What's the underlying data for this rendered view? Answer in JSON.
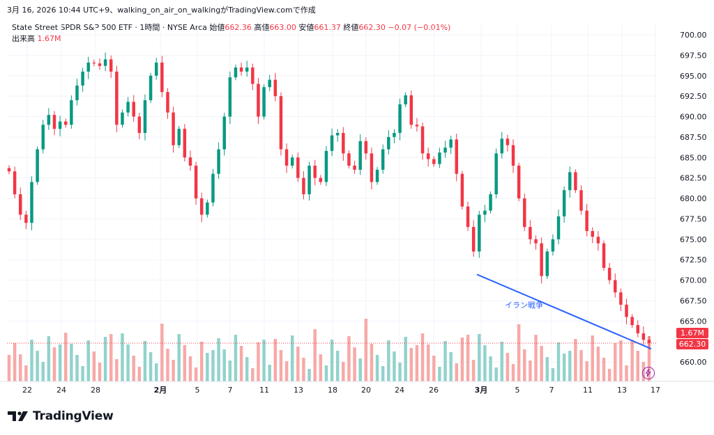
{
  "caption": "3月 16, 2026 10:44 UTC+9、walking_on_air_on_walkingがTradingView.comで作成",
  "header": {
    "symbol": "State Street SPDR S&P 500 ETF · 1時間 · NYSE Arca",
    "open_label": "始値",
    "open": "662.36",
    "high_label": "高値",
    "high": "663.00",
    "low_label": "安値",
    "low": "661.37",
    "close_label": "終値",
    "close": "662.30",
    "change": "−0.07 (−0.01%)"
  },
  "volume": {
    "label": "出来高",
    "value": "1.67M"
  },
  "logo_text": "TradingView",
  "colors": {
    "up": "#089981",
    "down": "#f23645",
    "up_vol": "#92d2cc",
    "down_vol": "#f7a9a7",
    "trend": "#2962ff",
    "grid": "#f0f3fa"
  },
  "chart_data": {
    "type": "candlestick",
    "price_axis": {
      "ticks": [
        "700.00",
        "697.50",
        "695.00",
        "692.50",
        "690.00",
        "687.50",
        "685.00",
        "682.50",
        "680.00",
        "677.50",
        "675.00",
        "672.50",
        "670.00",
        "667.50",
        "665.00",
        "660.00"
      ],
      "ylim": [
        659,
        701
      ]
    },
    "time_axis": {
      "ticks": [
        "22",
        "24",
        "28",
        "2月",
        "5",
        "7",
        "11",
        "13",
        "18",
        "20",
        "24",
        "26",
        "3月",
        "5",
        "7",
        "11",
        "13",
        "17"
      ]
    },
    "last_price": "662.30",
    "last_volume": "1.67M",
    "trendline": {
      "label": "イラン戦争",
      "start": 670.7,
      "end": 661.6
    },
    "close_series": [
      683.3,
      680.5,
      678.0,
      677.0,
      682.0,
      686.0,
      689.0,
      690.2,
      688.5,
      689.4,
      689.0,
      692.0,
      693.8,
      695.5,
      696.6,
      696.5,
      696.2,
      697.0,
      695.5,
      689.0,
      690.5,
      691.8,
      690.0,
      688.0,
      692.0,
      695.0,
      696.6,
      693.0,
      690.5,
      686.5,
      688.5,
      685.0,
      684.0,
      680.0,
      678.0,
      679.5,
      683.0,
      686.0,
      690.0,
      694.8,
      696.0,
      695.5,
      696.0,
      694.0,
      690.0,
      693.6,
      694.5,
      692.5,
      686.0,
      684.0,
      685.0,
      682.5,
      680.5,
      684.0,
      682.5,
      682.0,
      685.8,
      687.7,
      688.0,
      685.5,
      684.0,
      683.5,
      687.0,
      685.5,
      682.0,
      683.5,
      686.0,
      687.5,
      688.0,
      691.5,
      692.6,
      689.0,
      688.8,
      685.5,
      684.8,
      684.2,
      685.6,
      686.2,
      687.2,
      683.0,
      679.0,
      676.5,
      673.5,
      678.0,
      678.5,
      680.5,
      685.5,
      687.3,
      686.5,
      684.0,
      680.0,
      676.5,
      675.0,
      674.5,
      670.5,
      673.5,
      675.0,
      677.8,
      681.0,
      683.2,
      681.0,
      678.5,
      676.0,
      675.3,
      674.5,
      671.5,
      670.0,
      668.5,
      667.0,
      665.5,
      664.5,
      663.5,
      662.7,
      662.3
    ]
  }
}
